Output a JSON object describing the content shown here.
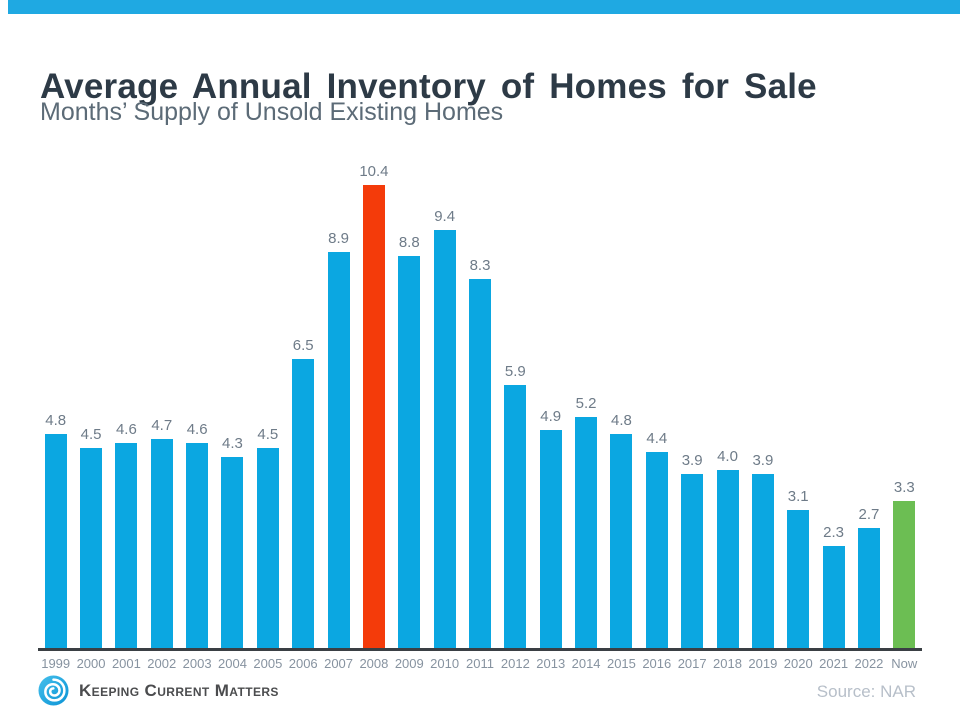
{
  "header": {
    "title": "Average Annual Inventory of Homes for Sale",
    "subtitle": "Months’ Supply of Unsold Existing Homes"
  },
  "footer": {
    "logo_text": "Keeping Current Matters",
    "source": "Source: NAR"
  },
  "colors": {
    "top_stripe": "#1fa9e2",
    "bar_blue": "#0ba7e1",
    "bar_red": "#f43b0a",
    "bar_green": "#6cbe53",
    "axis_line": "#3a3f44",
    "value_label": "#6e7b88",
    "tick_label": "#8793a0",
    "title_text": "#2d3a46",
    "subtitle_text": "#5c6b77",
    "source_text": "#b7bfc9",
    "logo_blue": "#1fa9e2"
  },
  "chart_data": {
    "type": "bar",
    "title": "Average Annual Inventory of Homes for Sale",
    "subtitle": "Months’ Supply of Unsold Existing Homes",
    "categories": [
      "1999",
      "2000",
      "2001",
      "2002",
      "2003",
      "2004",
      "2005",
      "2006",
      "2007",
      "2008",
      "2009",
      "2010",
      "2011",
      "2012",
      "2013",
      "2014",
      "2015",
      "2016",
      "2017",
      "2018",
      "2019",
      "2020",
      "2021",
      "2022",
      "Now"
    ],
    "values": [
      4.8,
      4.5,
      4.6,
      4.7,
      4.6,
      4.3,
      4.5,
      6.5,
      8.9,
      10.4,
      8.8,
      9.4,
      8.3,
      5.9,
      4.9,
      5.2,
      4.8,
      4.4,
      3.9,
      4.0,
      3.9,
      3.1,
      2.3,
      2.7,
      3.3
    ],
    "labels": [
      "4.8",
      "4.5",
      "4.6",
      "4.7",
      "4.6",
      "4.3",
      "4.5",
      "6.5",
      "8.9",
      "10.4",
      "8.8",
      "9.4",
      "8.3",
      "5.9",
      "4.9",
      "5.2",
      "4.8",
      "4.4",
      "3.9",
      "4.0",
      "3.9",
      "3.1",
      "2.3",
      "2.7",
      "3.3"
    ],
    "bar_colors": [
      "blue",
      "blue",
      "blue",
      "blue",
      "blue",
      "blue",
      "blue",
      "blue",
      "blue",
      "red",
      "blue",
      "blue",
      "blue",
      "blue",
      "blue",
      "blue",
      "blue",
      "blue",
      "blue",
      "blue",
      "blue",
      "blue",
      "blue",
      "blue",
      "green"
    ],
    "highlights": {
      "2008": "red",
      "Now": "green"
    },
    "xlabel": "",
    "ylabel": "",
    "ylim": [
      0,
      10.4
    ],
    "gridlines": false,
    "legend": "none",
    "value_labels_shown": true,
    "source": "Source: NAR"
  }
}
